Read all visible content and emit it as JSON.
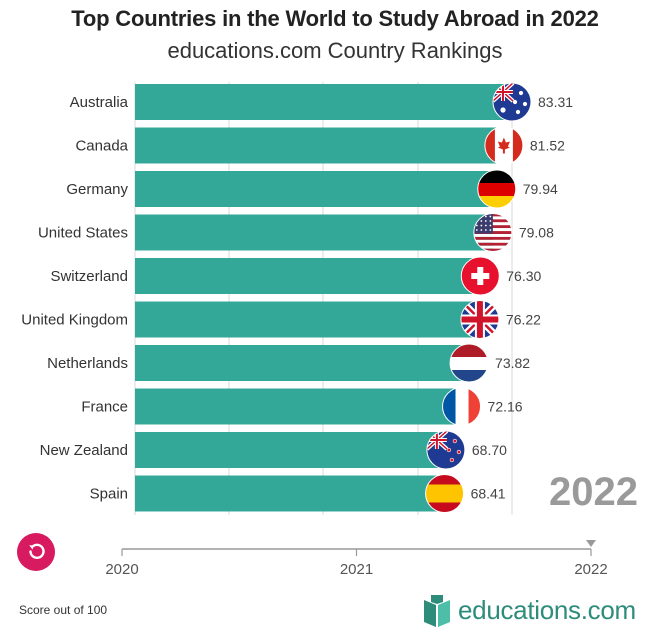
{
  "header": {
    "title": "Top Countries in the World to Study Abroad in 2022",
    "subtitle": "educations.com Country Rankings"
  },
  "chart_data": {
    "type": "bar",
    "orientation": "horizontal",
    "categories": [
      "Australia",
      "Canada",
      "Germany",
      "United States",
      "Switzerland",
      "United Kingdom",
      "Netherlands",
      "France",
      "New Zealand",
      "Spain"
    ],
    "values": [
      83.31,
      81.52,
      79.94,
      79.08,
      76.3,
      76.22,
      73.82,
      72.16,
      68.7,
      68.41
    ],
    "value_labels": [
      "83.31",
      "81.52",
      "79.94",
      "79.08",
      "76.30",
      "76.22",
      "73.82",
      "72.16",
      "68.70",
      "68.41"
    ],
    "flags": [
      "australia-flag",
      "canada-flag",
      "germany-flag",
      "usa-flag",
      "switzerland-flag",
      "uk-flag",
      "netherlands-flag",
      "france-flag",
      "new-zealand-flag",
      "spain-flag"
    ],
    "bar_color": "#34a898",
    "xlim": [
      0,
      85
    ],
    "grid": true,
    "legend": "none"
  },
  "timeline": {
    "ticks": [
      "2020",
      "2021",
      "2022"
    ],
    "current_year": "2022"
  },
  "footer": {
    "note": "Score out of 100",
    "brand": "educations.com"
  },
  "colors": {
    "accent": "#d81b60",
    "brand": "#2e8c7b"
  }
}
